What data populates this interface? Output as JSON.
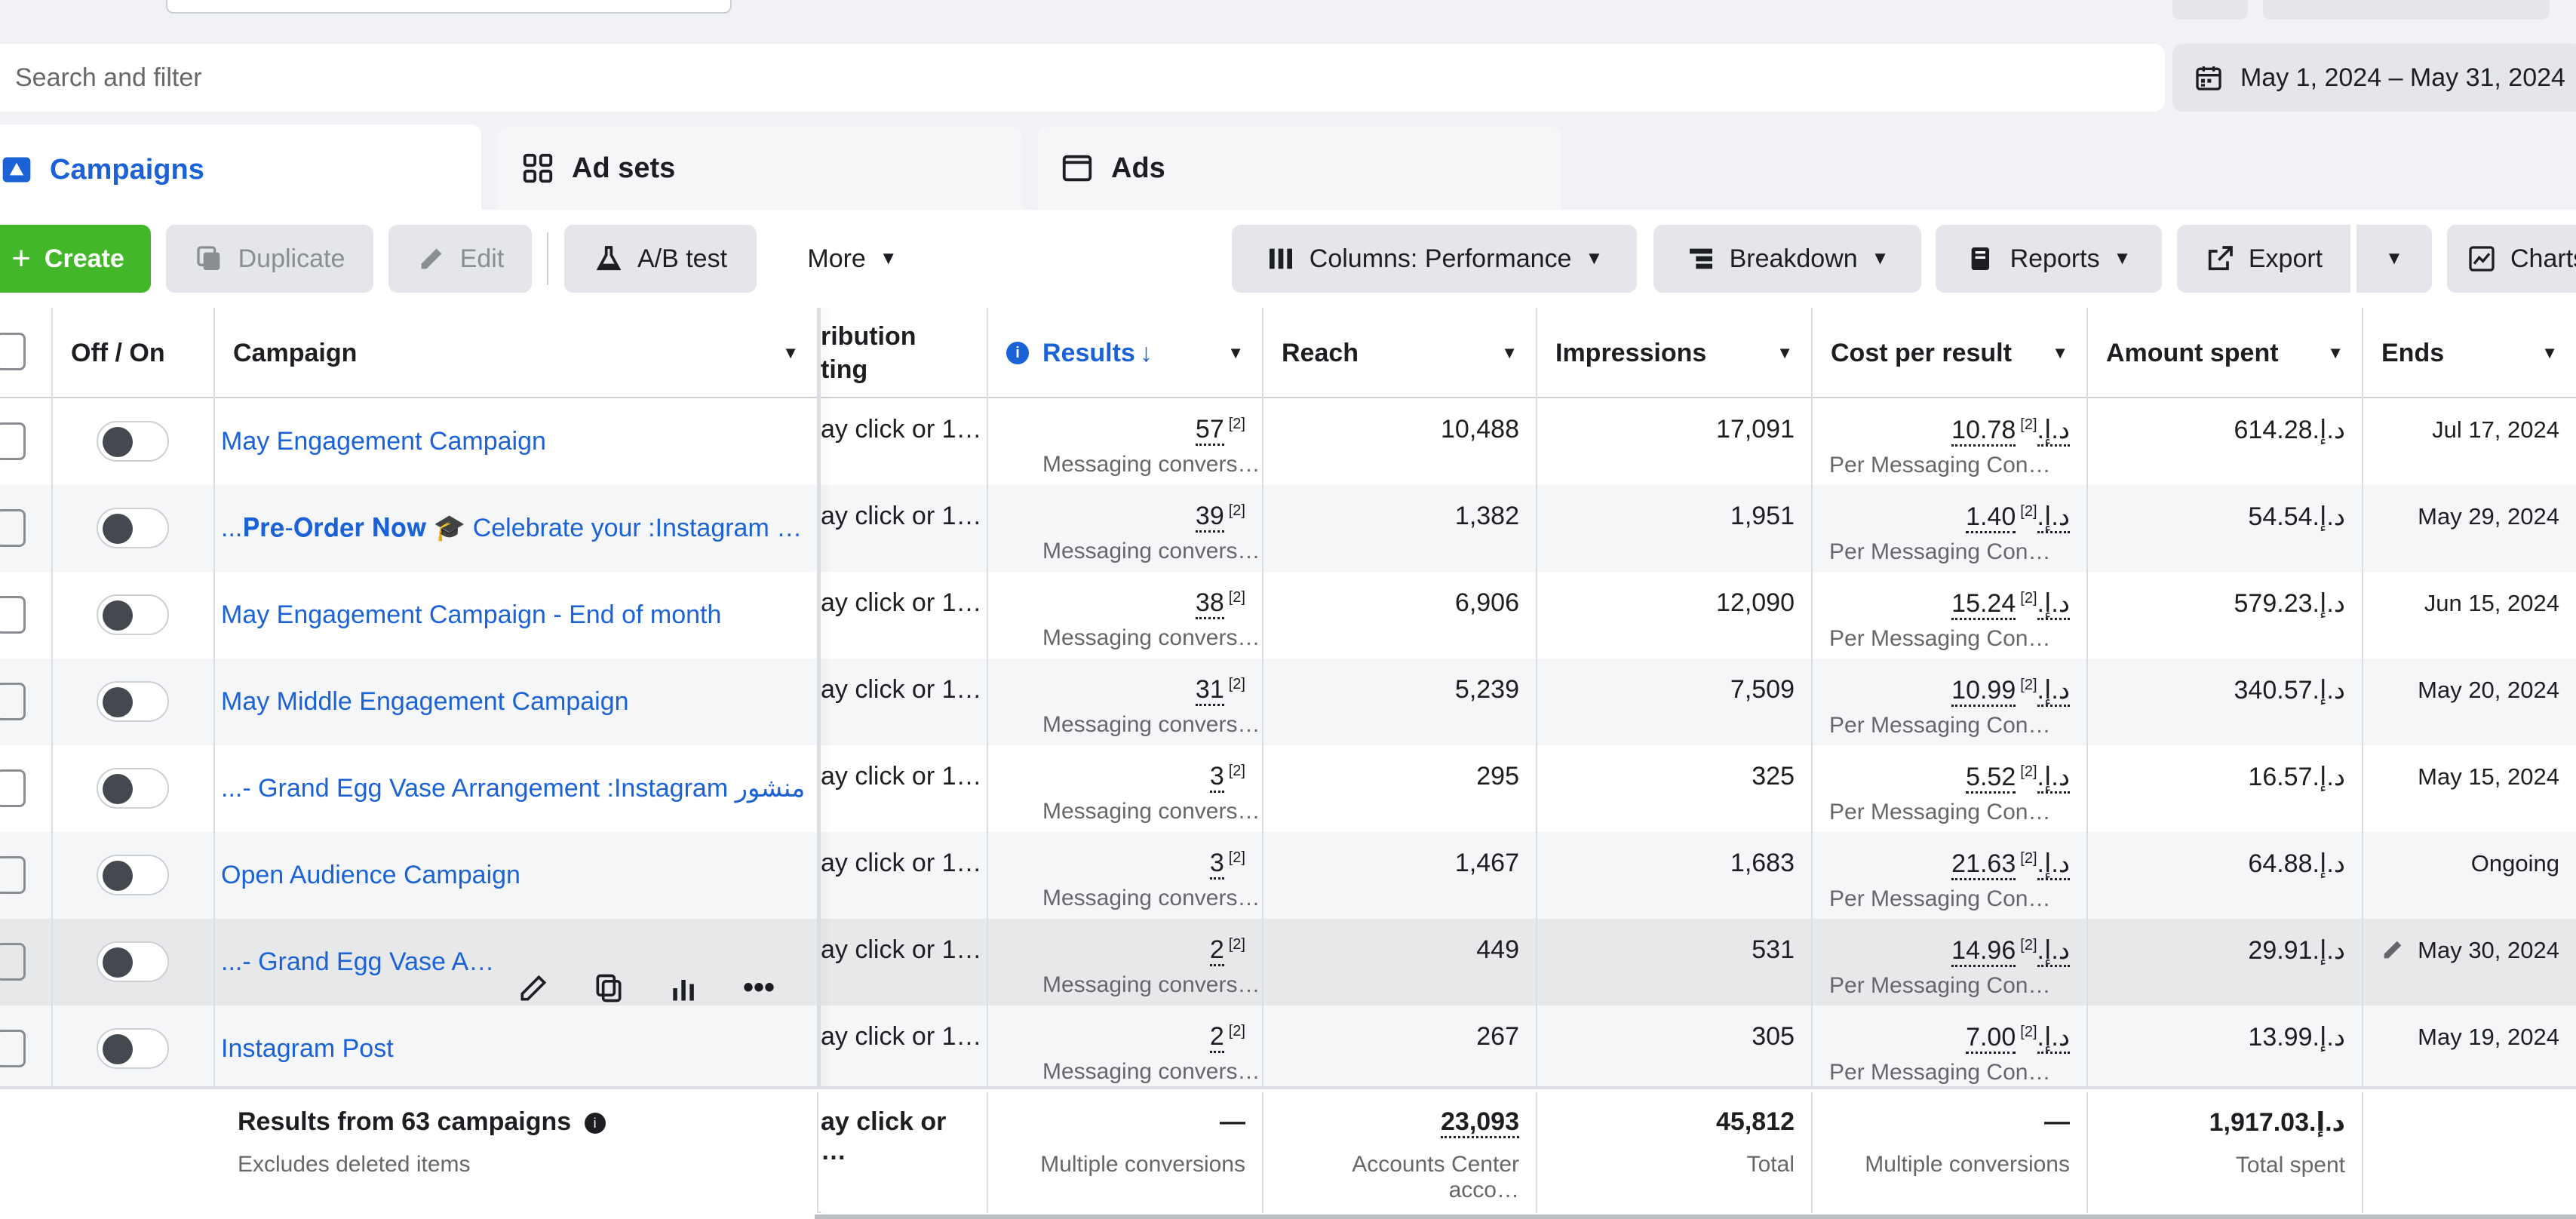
{
  "search": {
    "placeholder": "Search and filter"
  },
  "date_range": {
    "label": "May 1, 2024 – May 31, 2024",
    "icon": "calendar-icon"
  },
  "tabs": [
    {
      "label": "Campaigns",
      "icon": "campaigns-icon",
      "active": true
    },
    {
      "label": "Ad sets",
      "icon": "grid-icon",
      "active": false
    },
    {
      "label": "Ads",
      "icon": "ad-window-icon",
      "active": false
    }
  ],
  "toolbar": {
    "create": "Create",
    "duplicate": "Duplicate",
    "edit": "Edit",
    "ab_test": "A/B test",
    "more": "More",
    "columns": "Columns: Performance",
    "breakdown": "Breakdown",
    "reports": "Reports",
    "export": "Export",
    "charts": "Charts"
  },
  "columns": {
    "off_on": "Off / On",
    "campaign": "Campaign",
    "attribution_line1": "ribution",
    "attribution_line2": "ting",
    "results": "Results",
    "reach": "Reach",
    "impressions": "Impressions",
    "cost_per_result": "Cost per result",
    "amount_spent": "Amount spent",
    "ends": "Ends"
  },
  "rows": [
    {
      "campaign": "May Engagement Campaign",
      "attribution": "ay click or 1…",
      "results": "57",
      "results_sub": "Messaging convers…",
      "reach": "10,488",
      "impressions": "17,091",
      "cpr": "10.78د.إ.‏",
      "cpr_sub": "Per Messaging Con…",
      "spent": "614.28د.إ.‏",
      "ends": "Jul 17, 2024"
    },
    {
      "campaign": "...𝐏𝐫𝐞-𝐎𝐫𝐝𝐞𝐫 𝐍𝐨𝐰 🎓 Celebrate your :Instagram …",
      "attribution": "ay click or 1…",
      "results": "39",
      "results_sub": "Messaging convers…",
      "reach": "1,382",
      "impressions": "1,951",
      "cpr": "1.40د.إ.‏",
      "cpr_sub": "Per Messaging Con…",
      "spent": "54.54د.إ.‏",
      "ends": "May 29, 2024"
    },
    {
      "campaign": "May Engagement Campaign - End of month",
      "attribution": "ay click or 1…",
      "results": "38",
      "results_sub": "Messaging convers…",
      "reach": "6,906",
      "impressions": "12,090",
      "cpr": "15.24د.إ.‏",
      "cpr_sub": "Per Messaging Con…",
      "spent": "579.23د.إ.‏",
      "ends": "Jun 15, 2024"
    },
    {
      "campaign": "May Middle Engagement Campaign",
      "attribution": "ay click or 1…",
      "results": "31",
      "results_sub": "Messaging convers…",
      "reach": "5,239",
      "impressions": "7,509",
      "cpr": "10.99د.إ.‏",
      "cpr_sub": "Per Messaging Con…",
      "spent": "340.57د.إ.‏",
      "ends": "May 20, 2024"
    },
    {
      "campaign": "...- Grand Egg Vase Arrangement :Instagram منشور",
      "attribution": "ay click or 1…",
      "results": "3",
      "results_sub": "Messaging convers…",
      "reach": "295",
      "impressions": "325",
      "cpr": "5.52د.إ.‏",
      "cpr_sub": "Per Messaging Con…",
      "spent": "16.57د.إ.‏",
      "ends": "May 15, 2024"
    },
    {
      "campaign": "Open Audience Campaign",
      "attribution": "ay click or 1…",
      "results": "3",
      "results_sub": "Messaging convers…",
      "reach": "1,467",
      "impressions": "1,683",
      "cpr": "21.63د.إ.‏",
      "cpr_sub": "Per Messaging Con…",
      "spent": "64.88د.إ.‏",
      "ends": "Ongoing"
    },
    {
      "campaign": "...- Grand Egg Vase A…",
      "attribution": "ay click or 1…",
      "results": "2",
      "results_sub": "Messaging convers…",
      "reach": "449",
      "impressions": "531",
      "cpr": "14.96د.إ.‏",
      "cpr_sub": "Per Messaging Con…",
      "spent": "29.91د.إ.‏",
      "ends": "May 30, 2024"
    },
    {
      "campaign": "Instagram Post",
      "attribution": "ay click or 1…",
      "results": "2",
      "results_sub": "Messaging convers…",
      "reach": "267",
      "impressions": "305",
      "cpr": "7.00د.إ.‏",
      "cpr_sub": "Per Messaging Con…",
      "spent": "13.99د.إ.‏",
      "ends": "May 19, 2024"
    }
  ],
  "sup_marker": "[2]",
  "footer": {
    "title": "Results from 63 campaigns",
    "subtitle": "Excludes deleted items",
    "attribution": "ay click or …",
    "results": "—",
    "results_sub": "Multiple conversions",
    "reach": "23,093",
    "reach_sub": "Accounts Center acco…",
    "impressions": "45,812",
    "impressions_sub": "Total",
    "cpr": "—",
    "cpr_sub": "Multiple conversions",
    "spent": "1,917.03د.إ.‏",
    "spent_sub": "Total spent"
  }
}
